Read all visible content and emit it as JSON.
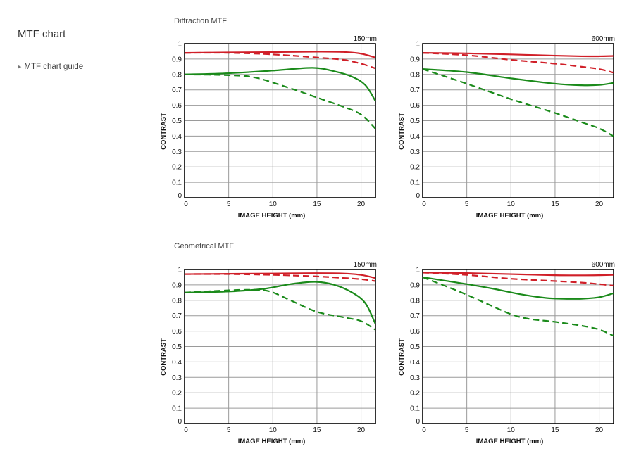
{
  "sidebar": {
    "title": "MTF chart",
    "guide_link": "MTF chart guide"
  },
  "sections": [
    {
      "title": "Diffraction MTF"
    },
    {
      "title": "Geometrical MTF"
    }
  ],
  "colors": {
    "red": "#d01f28",
    "green": "#1a8a1a",
    "grid": "#9a9a9a",
    "axis": "#000000"
  },
  "chart_data": [
    {
      "type": "line",
      "section": "Diffraction MTF",
      "focal": "150mm",
      "xlabel": "IMAGE HEIGHT (mm)",
      "ylabel": "CONTRAST",
      "xlim": [
        0,
        21.63
      ],
      "ylim": [
        0,
        1
      ],
      "xticks": [
        0,
        5,
        10,
        15,
        20
      ],
      "yticks": [
        0,
        0.1,
        0.2,
        0.3,
        0.4,
        0.5,
        0.6,
        0.7,
        0.8,
        0.9,
        1
      ],
      "grid": true,
      "series": [
        {
          "color": "red",
          "style": "solid",
          "points": [
            [
              0,
              0.94
            ],
            [
              5,
              0.943
            ],
            [
              10,
              0.945
            ],
            [
              15,
              0.948
            ],
            [
              18,
              0.946
            ],
            [
              20,
              0.935
            ],
            [
              21.6,
              0.91
            ]
          ]
        },
        {
          "color": "red",
          "style": "dashed",
          "points": [
            [
              0,
              0.94
            ],
            [
              5,
              0.94
            ],
            [
              10,
              0.93
            ],
            [
              15,
              0.91
            ],
            [
              18,
              0.895
            ],
            [
              20,
              0.87
            ],
            [
              21.6,
              0.84
            ]
          ]
        },
        {
          "color": "green",
          "style": "solid",
          "points": [
            [
              0,
              0.8
            ],
            [
              5,
              0.808
            ],
            [
              10,
              0.825
            ],
            [
              14.5,
              0.843
            ],
            [
              17,
              0.82
            ],
            [
              19,
              0.785
            ],
            [
              20.5,
              0.73
            ],
            [
              21.6,
              0.63
            ]
          ]
        },
        {
          "color": "green",
          "style": "dashed",
          "points": [
            [
              0,
              0.8
            ],
            [
              5,
              0.795
            ],
            [
              8,
              0.78
            ],
            [
              12,
              0.71
            ],
            [
              15,
              0.65
            ],
            [
              18,
              0.59
            ],
            [
              20,
              0.54
            ],
            [
              21.6,
              0.45
            ]
          ]
        }
      ]
    },
    {
      "type": "line",
      "section": "Diffraction MTF",
      "focal": "600mm",
      "xlabel": "IMAGE HEIGHT (mm)",
      "ylabel": "CONTRAST",
      "xlim": [
        0,
        21.63
      ],
      "ylim": [
        0,
        1
      ],
      "xticks": [
        0,
        5,
        10,
        15,
        20
      ],
      "yticks": [
        0,
        0.1,
        0.2,
        0.3,
        0.4,
        0.5,
        0.6,
        0.7,
        0.8,
        0.9,
        1
      ],
      "grid": true,
      "series": [
        {
          "color": "red",
          "style": "solid",
          "points": [
            [
              0,
              0.94
            ],
            [
              5,
              0.937
            ],
            [
              10,
              0.93
            ],
            [
              15,
              0.922
            ],
            [
              18,
              0.918
            ],
            [
              20,
              0.918
            ],
            [
              21.6,
              0.92
            ]
          ]
        },
        {
          "color": "red",
          "style": "dashed",
          "points": [
            [
              0,
              0.94
            ],
            [
              5,
              0.925
            ],
            [
              10,
              0.895
            ],
            [
              15,
              0.87
            ],
            [
              18,
              0.85
            ],
            [
              20,
              0.835
            ],
            [
              21.6,
              0.812
            ]
          ]
        },
        {
          "color": "green",
          "style": "solid",
          "points": [
            [
              0,
              0.835
            ],
            [
              5,
              0.815
            ],
            [
              10,
              0.775
            ],
            [
              15,
              0.74
            ],
            [
              18,
              0.73
            ],
            [
              20,
              0.732
            ],
            [
              21.6,
              0.745
            ]
          ]
        },
        {
          "color": "green",
          "style": "dashed",
          "points": [
            [
              0,
              0.835
            ],
            [
              5,
              0.74
            ],
            [
              10,
              0.64
            ],
            [
              15,
              0.55
            ],
            [
              18,
              0.49
            ],
            [
              20,
              0.45
            ],
            [
              21.6,
              0.4
            ]
          ]
        }
      ]
    },
    {
      "type": "line",
      "section": "Geometrical MTF",
      "focal": "150mm",
      "xlabel": "IMAGE HEIGHT (mm)",
      "ylabel": "CONTRAST",
      "xlim": [
        0,
        21.63
      ],
      "ylim": [
        0,
        1
      ],
      "xticks": [
        0,
        5,
        10,
        15,
        20
      ],
      "yticks": [
        0,
        0.1,
        0.2,
        0.3,
        0.4,
        0.5,
        0.6,
        0.7,
        0.8,
        0.9,
        1
      ],
      "grid": true,
      "series": [
        {
          "color": "red",
          "style": "solid",
          "points": [
            [
              0,
              0.97
            ],
            [
              5,
              0.972
            ],
            [
              10,
              0.974
            ],
            [
              15,
              0.976
            ],
            [
              18,
              0.974
            ],
            [
              20,
              0.965
            ],
            [
              21.6,
              0.945
            ]
          ]
        },
        {
          "color": "red",
          "style": "dashed",
          "points": [
            [
              0,
              0.97
            ],
            [
              5,
              0.97
            ],
            [
              10,
              0.965
            ],
            [
              15,
              0.955
            ],
            [
              18,
              0.945
            ],
            [
              20,
              0.937
            ],
            [
              21.6,
              0.925
            ]
          ]
        },
        {
          "color": "green",
          "style": "solid",
          "points": [
            [
              0,
              0.85
            ],
            [
              5,
              0.857
            ],
            [
              9,
              0.875
            ],
            [
              12,
              0.905
            ],
            [
              14.8,
              0.92
            ],
            [
              17,
              0.9
            ],
            [
              19,
              0.85
            ],
            [
              20.5,
              0.78
            ],
            [
              21.6,
              0.65
            ]
          ]
        },
        {
          "color": "green",
          "style": "dashed",
          "points": [
            [
              0,
              0.85
            ],
            [
              4,
              0.862
            ],
            [
              7,
              0.868
            ],
            [
              9.5,
              0.86
            ],
            [
              12,
              0.8
            ],
            [
              15,
              0.725
            ],
            [
              18,
              0.69
            ],
            [
              20,
              0.665
            ],
            [
              21.6,
              0.61
            ]
          ]
        }
      ]
    },
    {
      "type": "line",
      "section": "Geometrical MTF",
      "focal": "600mm",
      "xlabel": "IMAGE HEIGHT (mm)",
      "ylabel": "CONTRAST",
      "xlim": [
        0,
        21.63
      ],
      "ylim": [
        0,
        1
      ],
      "xticks": [
        0,
        5,
        10,
        15,
        20
      ],
      "yticks": [
        0,
        0.1,
        0.2,
        0.3,
        0.4,
        0.5,
        0.6,
        0.7,
        0.8,
        0.9,
        1
      ],
      "grid": true,
      "series": [
        {
          "color": "red",
          "style": "solid",
          "points": [
            [
              0,
              0.98
            ],
            [
              5,
              0.977
            ],
            [
              10,
              0.97
            ],
            [
              15,
              0.963
            ],
            [
              18,
              0.962
            ],
            [
              20,
              0.963
            ],
            [
              21.6,
              0.965
            ]
          ]
        },
        {
          "color": "red",
          "style": "dashed",
          "points": [
            [
              0,
              0.98
            ],
            [
              5,
              0.965
            ],
            [
              10,
              0.94
            ],
            [
              15,
              0.925
            ],
            [
              18,
              0.915
            ],
            [
              20,
              0.905
            ],
            [
              21.6,
              0.895
            ]
          ]
        },
        {
          "color": "green",
          "style": "solid",
          "points": [
            [
              0,
              0.95
            ],
            [
              5,
              0.905
            ],
            [
              8,
              0.875
            ],
            [
              11,
              0.84
            ],
            [
              14,
              0.815
            ],
            [
              16,
              0.81
            ],
            [
              18,
              0.81
            ],
            [
              20,
              0.82
            ],
            [
              21.6,
              0.845
            ]
          ]
        },
        {
          "color": "green",
          "style": "dashed",
          "points": [
            [
              0,
              0.95
            ],
            [
              4,
              0.86
            ],
            [
              7,
              0.785
            ],
            [
              10,
              0.71
            ],
            [
              12,
              0.68
            ],
            [
              15,
              0.66
            ],
            [
              18,
              0.635
            ],
            [
              20,
              0.61
            ],
            [
              21.6,
              0.57
            ]
          ]
        }
      ]
    }
  ]
}
